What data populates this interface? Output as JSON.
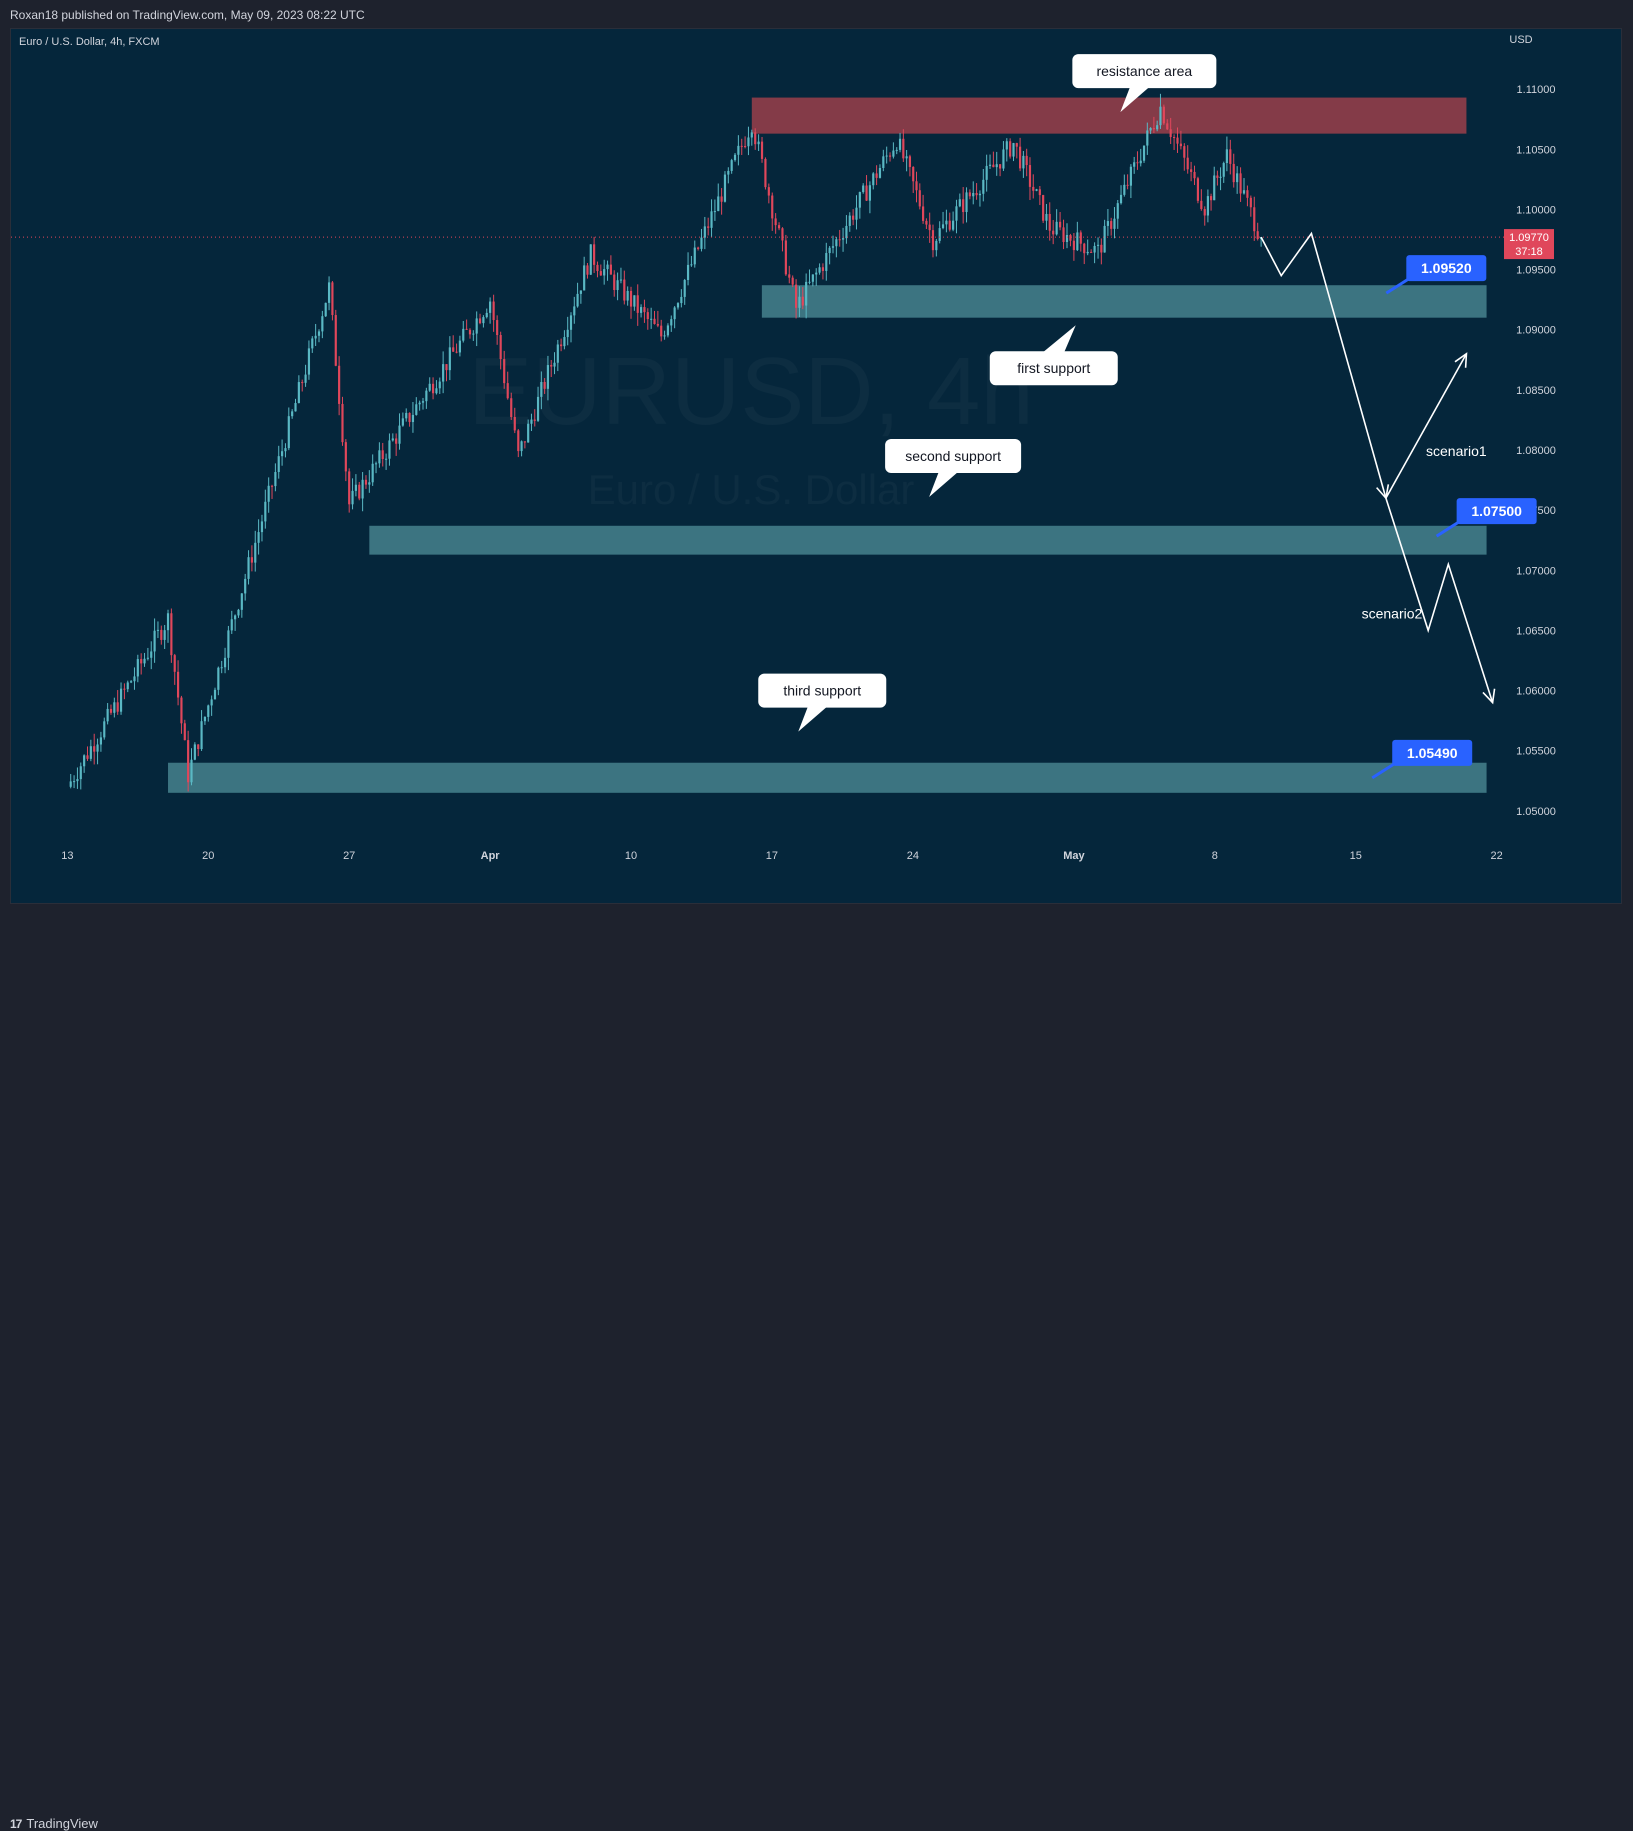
{
  "header": {
    "published_by": "Roxan18 published on TradingView.com, May 09, 2023 08:22 UTC"
  },
  "footer": {
    "brand": "TradingView",
    "brand_logo": "tradingview-logo-icon"
  },
  "chart_data": {
    "type": "candlestick",
    "title": "Euro / U.S. Dollar, 4h, FXCM",
    "watermark": {
      "symbol": "EURUSD, 4h",
      "name": "Euro / U.S. Dollar"
    },
    "currency": "USD",
    "ylim": [
      1.045,
      1.115
    ],
    "y_ticks": [
      "1.11000",
      "1.10500",
      "1.10000",
      "1.09500",
      "1.09000",
      "1.08500",
      "1.08000",
      "1.07500",
      "1.07000",
      "1.06500",
      "1.06000",
      "1.05500",
      "1.05000"
    ],
    "x_ticks": [
      "13",
      "20",
      "27",
      "Apr",
      "10",
      "17",
      "24",
      "May",
      "8",
      "15",
      "22"
    ],
    "x_tick_days": [
      0,
      7,
      14,
      21,
      28,
      35,
      42,
      50,
      57,
      64,
      71
    ],
    "x_range_days": [
      -2.8,
      73.8
    ],
    "last_price": {
      "value": 1.0977,
      "label": "1.09770",
      "countdown": "37:18"
    },
    "colors": {
      "up": "#5ab8c4",
      "down": "#e0475b",
      "background": "#05263b",
      "resistance": "#843b48",
      "support": "#3c7481",
      "target": "#2962ff",
      "path": "#ffffff"
    },
    "price_path": [
      {
        "x": [
          0.0,
          5.0
        ],
        "y": [
          1.052,
          1.066
        ]
      },
      {
        "x": [
          5.0,
          6.0
        ],
        "y": [
          1.066,
          1.053
        ]
      },
      {
        "x": [
          6.0,
          13.0
        ],
        "y": [
          1.053,
          1.0935
        ]
      },
      {
        "x": [
          13.0,
          14.0
        ],
        "y": [
          1.0935,
          1.0755
        ]
      },
      {
        "x": [
          14.0,
          21.0
        ],
        "y": [
          1.0755,
          1.0925
        ]
      },
      {
        "x": [
          21.0,
          22.4
        ],
        "y": [
          1.0925,
          1.0795
        ]
      },
      {
        "x": [
          22.4,
          26.0
        ],
        "y": [
          1.0795,
          1.0962
        ]
      },
      {
        "x": [
          26.0,
          29.5
        ],
        "y": [
          1.0962,
          1.0895
        ]
      },
      {
        "x": [
          29.5,
          34.0
        ],
        "y": [
          1.0895,
          1.1073
        ]
      },
      {
        "x": [
          34.0,
          36.2
        ],
        "y": [
          1.1073,
          1.0918
        ]
      },
      {
        "x": [
          36.2,
          41.2
        ],
        "y": [
          1.0918,
          1.1058
        ]
      },
      {
        "x": [
          41.2,
          43.0
        ],
        "y": [
          1.1058,
          1.0975
        ]
      },
      {
        "x": [
          43.0,
          47.0
        ],
        "y": [
          1.0975,
          1.1055
        ]
      },
      {
        "x": [
          47.0,
          48.8
        ],
        "y": [
          1.1055,
          1.0985
        ]
      },
      {
        "x": [
          48.8,
          51.2
        ],
        "y": [
          1.0985,
          1.0965
        ]
      },
      {
        "x": [
          51.2,
          54.3
        ],
        "y": [
          1.0965,
          1.1085
        ]
      },
      {
        "x": [
          54.3,
          56.5
        ],
        "y": [
          1.1085,
          1.1002
        ]
      },
      {
        "x": [
          56.5,
          57.6
        ],
        "y": [
          1.1002,
          1.1045
        ]
      },
      {
        "x": [
          57.6,
          59.3
        ],
        "y": [
          1.1045,
          1.0977
        ]
      }
    ],
    "zones": [
      {
        "kind": "resistance",
        "x": [
          34.0,
          69.5
        ],
        "y": [
          1.1093,
          1.1063
        ]
      },
      {
        "kind": "support",
        "x": [
          34.5,
          70.5
        ],
        "y": [
          1.0937,
          1.091
        ]
      },
      {
        "kind": "support",
        "x": [
          15.0,
          70.5
        ],
        "y": [
          1.0737,
          1.0713
        ]
      },
      {
        "kind": "support",
        "x": [
          5.0,
          70.5
        ],
        "y": [
          1.054,
          1.0515
        ]
      }
    ],
    "callouts": [
      {
        "label": "resistance area",
        "x": 53.5,
        "y": 1.1115,
        "pointer": "down"
      },
      {
        "label": "first support",
        "x": 49.0,
        "y": 1.0868,
        "pointer": "up"
      },
      {
        "label": "second support",
        "x": 44.0,
        "y": 1.0795,
        "pointer": "down"
      },
      {
        "label": "third support",
        "x": 37.5,
        "y": 1.06,
        "pointer": "down"
      }
    ],
    "targets": [
      {
        "label": "1.09520",
        "value": 1.0952,
        "x": 68.5
      },
      {
        "label": "1.07500",
        "value": 1.075,
        "x": 71.0
      },
      {
        "label": "1.05490",
        "value": 1.0549,
        "x": 67.8
      }
    ],
    "scenario_path": [
      [
        59.3,
        1.0977
      ],
      [
        60.3,
        1.0945
      ],
      [
        61.8,
        1.098
      ],
      [
        65.5,
        1.076
      ]
    ],
    "scenario1": {
      "label": "scenario1",
      "x": 69.0,
      "y": 1.0795,
      "path": [
        [
          65.5,
          1.076
        ],
        [
          69.5,
          1.088
        ]
      ]
    },
    "scenario2": {
      "label": "scenario2",
      "x": 65.8,
      "y": 1.066,
      "path": [
        [
          65.5,
          1.076
        ],
        [
          67.6,
          1.065
        ],
        [
          68.6,
          1.0705
        ],
        [
          70.8,
          1.059
        ]
      ]
    }
  }
}
